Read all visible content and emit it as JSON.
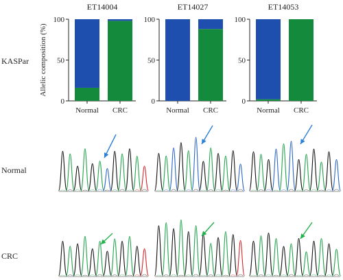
{
  "row_labels": {
    "kaspar": "KASPar",
    "normal": "Normal",
    "crc": "CRC"
  },
  "colors": {
    "allele_a": "#1f4fae",
    "allele_b": "#148a3c",
    "arrow_blue": "#2c7fd6",
    "arrow_green": "#22b04a"
  },
  "chart_data": [
    {
      "type": "bar",
      "stacked": true,
      "title": "ET14004",
      "ylabel": "Allelic composition (%)",
      "categories": [
        "Normal",
        "CRC"
      ],
      "ylim": [
        0,
        100
      ],
      "yticks": [
        0,
        50,
        100
      ],
      "series": [
        {
          "color": "#148a3c",
          "values": [
            16,
            98
          ]
        },
        {
          "color": "#1f4fae",
          "values": [
            84,
            2
          ]
        }
      ]
    },
    {
      "type": "bar",
      "stacked": true,
      "title": "ET14027",
      "ylabel": "",
      "categories": [
        "Normal",
        "CRC"
      ],
      "ylim": [
        0,
        100
      ],
      "yticks": [
        0,
        50,
        100
      ],
      "series": [
        {
          "color": "#148a3c",
          "values": [
            0,
            88
          ]
        },
        {
          "color": "#1f4fae",
          "values": [
            100,
            12
          ]
        }
      ]
    },
    {
      "type": "bar",
      "stacked": true,
      "title": "ET14053",
      "ylabel": "",
      "categories": [
        "Normal",
        "CRC"
      ],
      "ylim": [
        0,
        100
      ],
      "yticks": [
        0,
        50,
        100
      ],
      "series": [
        {
          "color": "#148a3c",
          "values": [
            2,
            100
          ]
        },
        {
          "color": "#1f4fae",
          "values": [
            98,
            0
          ]
        }
      ]
    }
  ]
}
